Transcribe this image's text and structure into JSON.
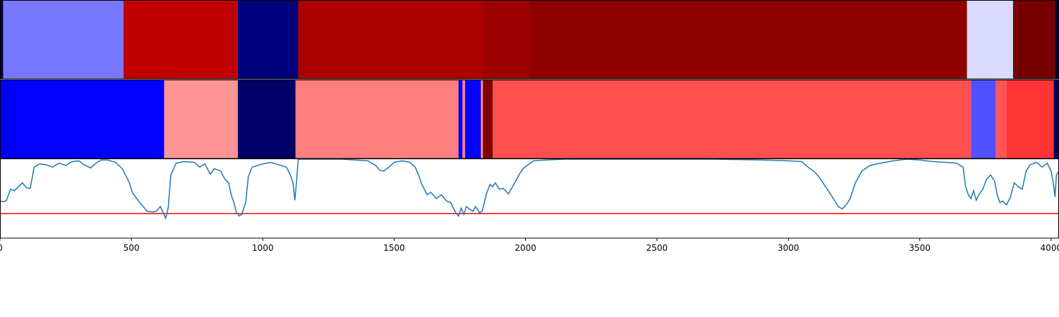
{
  "chart_data": {
    "type": "heatmap",
    "xlim": [
      0,
      4030
    ],
    "x_ticks": [
      {
        "value": 0,
        "label": "0"
      },
      {
        "value": 500,
        "label": "500"
      },
      {
        "value": 1000,
        "label": "1000"
      },
      {
        "value": 1500,
        "label": "1500"
      },
      {
        "value": 2000,
        "label": "2000"
      },
      {
        "value": 2500,
        "label": "2500"
      },
      {
        "value": 3000,
        "label": "3000"
      },
      {
        "value": 3500,
        "label": "3500"
      },
      {
        "value": 4000,
        "label": "4000"
      }
    ],
    "segment_rows": [
      {
        "segments": [
          {
            "start": 0,
            "end": 12,
            "color": "#000048"
          },
          {
            "start": 12,
            "end": 470,
            "color": "#7878ff"
          },
          {
            "start": 470,
            "end": 905,
            "color": "#c00000"
          },
          {
            "start": 905,
            "end": 1135,
            "color": "#00007a"
          },
          {
            "start": 1135,
            "end": 1835,
            "color": "#ad0000"
          },
          {
            "start": 1835,
            "end": 2015,
            "color": "#9c0000"
          },
          {
            "start": 2015,
            "end": 3680,
            "color": "#8e0000"
          },
          {
            "start": 3680,
            "end": 3855,
            "color": "#dadaff"
          },
          {
            "start": 3855,
            "end": 4015,
            "color": "#760000"
          },
          {
            "start": 4015,
            "end": 4030,
            "color": "#000048"
          }
        ]
      },
      {
        "segments": [
          {
            "start": 0,
            "end": 625,
            "color": "#0000ff"
          },
          {
            "start": 625,
            "end": 905,
            "color": "#ff9494"
          },
          {
            "start": 905,
            "end": 1125,
            "color": "#000066"
          },
          {
            "start": 1125,
            "end": 1745,
            "color": "#ff7f7f"
          },
          {
            "start": 1745,
            "end": 1760,
            "color": "#0000ff"
          },
          {
            "start": 1760,
            "end": 1770,
            "color": "#ff7f7f"
          },
          {
            "start": 1770,
            "end": 1830,
            "color": "#0000ff"
          },
          {
            "start": 1830,
            "end": 1838,
            "color": "#ff7f7f"
          },
          {
            "start": 1838,
            "end": 1875,
            "color": "#800000"
          },
          {
            "start": 1875,
            "end": 3695,
            "color": "#ff4f4f"
          },
          {
            "start": 3695,
            "end": 3790,
            "color": "#5050ff"
          },
          {
            "start": 3790,
            "end": 3830,
            "color": "#ff5555"
          },
          {
            "start": 3830,
            "end": 4010,
            "color": "#ff3434"
          },
          {
            "start": 4010,
            "end": 4030,
            "color": "#000060"
          }
        ]
      }
    ],
    "line": {
      "ylim": [
        0,
        1
      ],
      "color": "#1f77b4",
      "threshold": 0.31,
      "threshold_color": "#ff0000",
      "points": [
        [
          0,
          0.47
        ],
        [
          15,
          0.46
        ],
        [
          25,
          0.48
        ],
        [
          40,
          0.62
        ],
        [
          55,
          0.6
        ],
        [
          70,
          0.65
        ],
        [
          85,
          0.7
        ],
        [
          100,
          0.64
        ],
        [
          115,
          0.63
        ],
        [
          130,
          0.9
        ],
        [
          150,
          0.94
        ],
        [
          175,
          0.93
        ],
        [
          200,
          0.9
        ],
        [
          225,
          0.95
        ],
        [
          250,
          0.92
        ],
        [
          275,
          0.97
        ],
        [
          300,
          0.98
        ],
        [
          320,
          0.93
        ],
        [
          345,
          0.89
        ],
        [
          365,
          0.95
        ],
        [
          385,
          0.99
        ],
        [
          410,
          0.99
        ],
        [
          440,
          0.96
        ],
        [
          465,
          0.88
        ],
        [
          490,
          0.72
        ],
        [
          505,
          0.57
        ],
        [
          525,
          0.48
        ],
        [
          545,
          0.4
        ],
        [
          560,
          0.34
        ],
        [
          580,
          0.33
        ],
        [
          595,
          0.34
        ],
        [
          610,
          0.4
        ],
        [
          620,
          0.33
        ],
        [
          630,
          0.25
        ],
        [
          640,
          0.38
        ],
        [
          650,
          0.8
        ],
        [
          670,
          0.95
        ],
        [
          700,
          0.97
        ],
        [
          740,
          0.96
        ],
        [
          760,
          0.9
        ],
        [
          780,
          0.94
        ],
        [
          800,
          0.81
        ],
        [
          815,
          0.88
        ],
        [
          840,
          0.85
        ],
        [
          855,
          0.75
        ],
        [
          870,
          0.7
        ],
        [
          880,
          0.55
        ],
        [
          890,
          0.45
        ],
        [
          900,
          0.32
        ],
        [
          910,
          0.28
        ],
        [
          920,
          0.3
        ],
        [
          935,
          0.45
        ],
        [
          945,
          0.78
        ],
        [
          960,
          0.9
        ],
        [
          980,
          0.92
        ],
        [
          1000,
          0.94
        ],
        [
          1030,
          0.96
        ],
        [
          1060,
          0.93
        ],
        [
          1090,
          0.9
        ],
        [
          1105,
          0.8
        ],
        [
          1115,
          0.7
        ],
        [
          1122,
          0.48
        ],
        [
          1128,
          0.7
        ],
        [
          1135,
          1.0
        ],
        [
          1160,
          1.0
        ],
        [
          1200,
          1.0
        ],
        [
          1250,
          1.0
        ],
        [
          1300,
          1.0
        ],
        [
          1350,
          0.99
        ],
        [
          1400,
          0.98
        ],
        [
          1430,
          0.92
        ],
        [
          1445,
          0.86
        ],
        [
          1460,
          0.85
        ],
        [
          1480,
          0.9
        ],
        [
          1500,
          0.96
        ],
        [
          1530,
          0.98
        ],
        [
          1560,
          0.96
        ],
        [
          1580,
          0.9
        ],
        [
          1595,
          0.78
        ],
        [
          1605,
          0.68
        ],
        [
          1615,
          0.62
        ],
        [
          1625,
          0.55
        ],
        [
          1640,
          0.58
        ],
        [
          1660,
          0.5
        ],
        [
          1680,
          0.55
        ],
        [
          1700,
          0.47
        ],
        [
          1715,
          0.45
        ],
        [
          1725,
          0.38
        ],
        [
          1735,
          0.32
        ],
        [
          1745,
          0.28
        ],
        [
          1755,
          0.38
        ],
        [
          1765,
          0.3
        ],
        [
          1775,
          0.4
        ],
        [
          1790,
          0.36
        ],
        [
          1800,
          0.34
        ],
        [
          1810,
          0.4
        ],
        [
          1825,
          0.32
        ],
        [
          1835,
          0.34
        ],
        [
          1850,
          0.55
        ],
        [
          1865,
          0.68
        ],
        [
          1875,
          0.65
        ],
        [
          1885,
          0.7
        ],
        [
          1900,
          0.62
        ],
        [
          1915,
          0.63
        ],
        [
          1935,
          0.56
        ],
        [
          1955,
          0.68
        ],
        [
          1975,
          0.8
        ],
        [
          1990,
          0.88
        ],
        [
          2010,
          0.93
        ],
        [
          2030,
          0.98
        ],
        [
          2080,
          0.99
        ],
        [
          2150,
          1.0
        ],
        [
          2300,
          1.0
        ],
        [
          2500,
          1.0
        ],
        [
          2700,
          1.0
        ],
        [
          2900,
          0.99
        ],
        [
          3000,
          0.98
        ],
        [
          3050,
          0.97
        ],
        [
          3075,
          0.9
        ],
        [
          3100,
          0.84
        ],
        [
          3120,
          0.76
        ],
        [
          3140,
          0.66
        ],
        [
          3160,
          0.56
        ],
        [
          3175,
          0.48
        ],
        [
          3190,
          0.4
        ],
        [
          3205,
          0.37
        ],
        [
          3220,
          0.42
        ],
        [
          3235,
          0.5
        ],
        [
          3255,
          0.7
        ],
        [
          3280,
          0.85
        ],
        [
          3310,
          0.92
        ],
        [
          3350,
          0.95
        ],
        [
          3400,
          0.98
        ],
        [
          3450,
          1.0
        ],
        [
          3500,
          0.99
        ],
        [
          3550,
          0.97
        ],
        [
          3600,
          0.96
        ],
        [
          3640,
          0.95
        ],
        [
          3665,
          0.9
        ],
        [
          3675,
          0.65
        ],
        [
          3685,
          0.55
        ],
        [
          3695,
          0.5
        ],
        [
          3705,
          0.6
        ],
        [
          3715,
          0.48
        ],
        [
          3725,
          0.55
        ],
        [
          3740,
          0.62
        ],
        [
          3755,
          0.75
        ],
        [
          3770,
          0.8
        ],
        [
          3785,
          0.72
        ],
        [
          3795,
          0.55
        ],
        [
          3805,
          0.45
        ],
        [
          3815,
          0.47
        ],
        [
          3830,
          0.42
        ],
        [
          3845,
          0.52
        ],
        [
          3860,
          0.7
        ],
        [
          3875,
          0.65
        ],
        [
          3890,
          0.62
        ],
        [
          3905,
          0.85
        ],
        [
          3920,
          0.93
        ],
        [
          3945,
          0.96
        ],
        [
          3965,
          0.9
        ],
        [
          3985,
          0.95
        ],
        [
          4000,
          0.85
        ],
        [
          4008,
          0.7
        ],
        [
          4015,
          0.52
        ],
        [
          4020,
          0.8
        ],
        [
          4030,
          0.85
        ]
      ]
    }
  }
}
